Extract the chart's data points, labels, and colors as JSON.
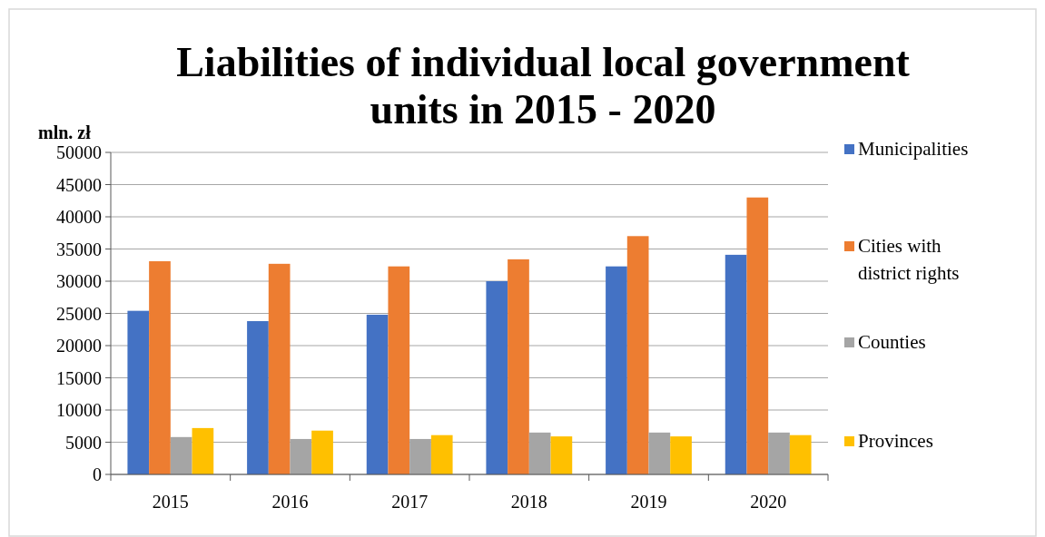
{
  "chart_data": {
    "type": "bar",
    "title": "Liabilities of individual local government units in 2015 - 2020",
    "ylabel": "mln. zł",
    "categories": [
      "2015",
      "2016",
      "2017",
      "2018",
      "2019",
      "2020"
    ],
    "series": [
      {
        "name": "Municipalities",
        "color": "#4472c4",
        "values": [
          25400,
          23800,
          24800,
          30000,
          32300,
          34100
        ]
      },
      {
        "name": "Cities with district rights",
        "color": "#ed7d31",
        "values": [
          33100,
          32700,
          32300,
          33400,
          37000,
          43000
        ]
      },
      {
        "name": "Counties",
        "color": "#a5a5a5",
        "values": [
          5800,
          5500,
          5500,
          6500,
          6500,
          6500
        ]
      },
      {
        "name": "Provinces",
        "color": "#ffc000",
        "values": [
          7200,
          6800,
          6100,
          5900,
          5900,
          6100
        ]
      }
    ],
    "ylim": [
      0,
      50000
    ],
    "yticks": [
      0,
      5000,
      10000,
      15000,
      20000,
      25000,
      30000,
      35000,
      40000,
      45000,
      50000
    ],
    "grid": "y",
    "legend": "right"
  }
}
